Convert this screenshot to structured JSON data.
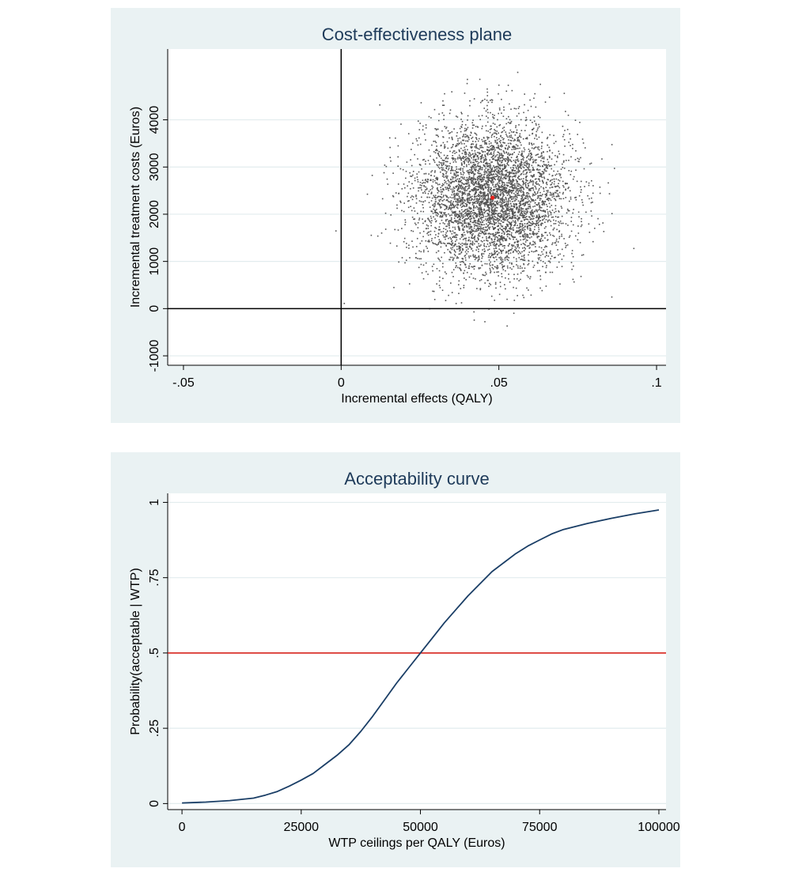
{
  "chart_data": [
    {
      "type": "scatter",
      "title": "Cost-effectiveness plane",
      "xlabel": "Incremental effects (QALY)",
      "ylabel": "Incremental treatment costs (Euros)",
      "xlim": [
        -0.055,
        0.103
      ],
      "ylim": [
        -1200,
        5500
      ],
      "x_ticks": [
        -0.05,
        0,
        0.05,
        0.1
      ],
      "x_tick_labels": [
        "-.05",
        "0",
        ".05",
        ".1"
      ],
      "y_ticks": [
        -1000,
        0,
        1000,
        2000,
        3000,
        4000
      ],
      "y_tick_labels": [
        "-1000",
        "0",
        "1000",
        "2000",
        "3000",
        "4000"
      ],
      "reference_lines": {
        "x": 0,
        "y": 0
      },
      "grid": "horizontal",
      "point_estimate": {
        "x": 0.048,
        "y": 2350,
        "color": "#e8201a"
      },
      "simulation": {
        "n": 5000,
        "x_mean": 0.048,
        "x_sd": 0.012,
        "y_mean": 2350,
        "y_sd": 800
      },
      "point_color": "#555555"
    },
    {
      "type": "line",
      "title": "Acceptability curve",
      "xlabel": "WTP ceilings per QALY (Euros)",
      "ylabel": "Probability(acceptable | WTP)",
      "xlim": [
        -3000,
        101500
      ],
      "ylim": [
        -0.02,
        1.03
      ],
      "x_ticks": [
        0,
        25000,
        50000,
        75000,
        100000
      ],
      "x_tick_labels": [
        "0",
        "25000",
        "50000",
        "75000",
        "100000"
      ],
      "y_ticks": [
        0,
        0.25,
        0.5,
        0.75,
        1
      ],
      "y_tick_labels": [
        "0",
        ".25",
        ".5",
        ".75",
        "1"
      ],
      "grid": "horizontal",
      "reference_lines": {
        "y": 0.5,
        "color": "#d8231c"
      },
      "series": [
        {
          "color": "#1a3e66",
          "x": [
            0,
            5000,
            10000,
            15000,
            17500,
            20000,
            22500,
            25000,
            27500,
            30000,
            32500,
            35000,
            37500,
            40000,
            42500,
            45000,
            47500,
            50000,
            52500,
            55000,
            57500,
            60000,
            62500,
            65000,
            67500,
            70000,
            72500,
            75000,
            77500,
            80000,
            85000,
            90000,
            95000,
            100000
          ],
          "y": [
            0.002,
            0.005,
            0.01,
            0.018,
            0.028,
            0.04,
            0.058,
            0.078,
            0.1,
            0.13,
            0.16,
            0.195,
            0.24,
            0.29,
            0.345,
            0.4,
            0.45,
            0.5,
            0.55,
            0.6,
            0.645,
            0.69,
            0.73,
            0.77,
            0.8,
            0.83,
            0.855,
            0.875,
            0.895,
            0.91,
            0.93,
            0.947,
            0.962,
            0.975
          ]
        }
      ]
    }
  ]
}
